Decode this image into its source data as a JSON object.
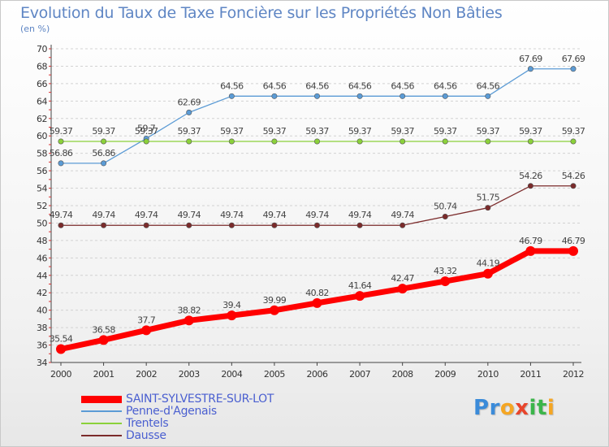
{
  "chart_data": {
    "type": "line",
    "title": "Evolution du Taux de Taxe Foncière sur les Propriétés Non Bâties",
    "subtitle": "(en %)",
    "x": [
      "2000",
      "2001",
      "2002",
      "2003",
      "2004",
      "2005",
      "2006",
      "2007",
      "2008",
      "2009",
      "2010",
      "2011",
      "2012"
    ],
    "ylim": [
      34,
      70
    ],
    "yticks": [
      34,
      36,
      38,
      40,
      42,
      44,
      46,
      48,
      50,
      52,
      54,
      56,
      58,
      60,
      62,
      64,
      66,
      68,
      70
    ],
    "grid": "horizontal dashed",
    "legend_position": "bottom-left",
    "series": [
      {
        "name": "SAINT-SYLVESTRE-SUR-LOT",
        "color": "#ff0000",
        "emphasis": true,
        "values": [
          35.54,
          36.58,
          37.7,
          38.82,
          39.4,
          39.99,
          40.82,
          41.64,
          42.47,
          43.32,
          44.19,
          46.79,
          46.79
        ],
        "labels": [
          "35.54",
          "36.58",
          "37.7",
          "38.82",
          "39.4",
          "39.99",
          "40.82",
          "41.64",
          "42.47",
          "43.32",
          "44.19",
          "46.79",
          "46.79"
        ]
      },
      {
        "name": "Penne-d'Agenais",
        "color": "#5b9bd5",
        "emphasis": false,
        "values": [
          56.86,
          56.86,
          59.7,
          62.69,
          64.56,
          64.56,
          64.56,
          64.56,
          64.56,
          64.56,
          64.56,
          67.69,
          67.69
        ],
        "labels": [
          "56.86",
          "56.86",
          "59.7",
          "62.69",
          "64.56",
          "64.56",
          "64.56",
          "64.56",
          "64.56",
          "64.56",
          "64.56",
          "67.69",
          "67.69"
        ]
      },
      {
        "name": "Trentels",
        "color": "#8bd13a",
        "emphasis": false,
        "values": [
          59.37,
          59.37,
          59.37,
          59.37,
          59.37,
          59.37,
          59.37,
          59.37,
          59.37,
          59.37,
          59.37,
          59.37,
          59.37
        ],
        "labels": [
          "59.37",
          "59.37",
          "59.37",
          "59.37",
          "59.37",
          "59.37",
          "59.37",
          "59.37",
          "59.37",
          "59.37",
          "59.37",
          "59.37",
          "59.37"
        ]
      },
      {
        "name": "Dausse",
        "color": "#7b2b2b",
        "emphasis": false,
        "values": [
          49.74,
          49.74,
          49.74,
          49.74,
          49.74,
          49.74,
          49.74,
          49.74,
          49.74,
          50.74,
          51.75,
          54.26,
          54.26
        ],
        "labels": [
          "49.74",
          "49.74",
          "49.74",
          "49.74",
          "49.74",
          "49.74",
          "49.74",
          "49.74",
          "49.74",
          "50.74",
          "51.75",
          "54.26",
          "54.26"
        ]
      }
    ]
  },
  "brand": {
    "text": "Proxiti",
    "letters": [
      "P",
      "r",
      "o",
      "x",
      "i",
      "t",
      "i"
    ],
    "colors": [
      "#3b8bd9",
      "#3b8bd9",
      "#f5a623",
      "#e8452c",
      "#3bb54a",
      "#3bb54a",
      "#f5a623"
    ]
  }
}
